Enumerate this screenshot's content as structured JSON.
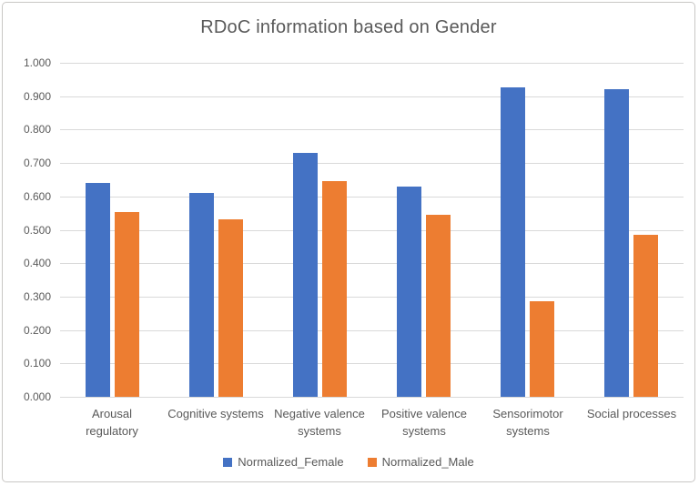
{
  "chart_data": {
    "type": "bar",
    "title": "RDoC information based on Gender",
    "categories": [
      "Arousal regulatory",
      "Cognitive systems",
      "Negative valence systems",
      "Positive valence systems",
      "Sensorimotor systems",
      "Social processes"
    ],
    "category_label_lines": [
      [
        "Arousal",
        "regulatory"
      ],
      [
        "Cognitive systems"
      ],
      [
        "Negative valence",
        "systems"
      ],
      [
        "Positive valence",
        "systems"
      ],
      [
        "Sensorimotor",
        "systems"
      ],
      [
        "Social processes"
      ]
    ],
    "series": [
      {
        "name": "Normalized_Female",
        "color": "#4472C4",
        "values": [
          0.641,
          0.61,
          0.73,
          0.629,
          0.927,
          0.922
        ]
      },
      {
        "name": "Normalized_Male",
        "color": "#ED7D31",
        "values": [
          0.552,
          0.53,
          0.646,
          0.545,
          0.285,
          0.484
        ]
      }
    ],
    "xlabel": "",
    "ylabel": "",
    "ylim": [
      0,
      1
    ],
    "ytick_step": 0.1,
    "ytick_labels": [
      "0.000",
      "0.100",
      "0.200",
      "0.300",
      "0.400",
      "0.500",
      "0.600",
      "0.700",
      "0.800",
      "0.900",
      "1.000"
    ],
    "grid": true,
    "legend_position": "bottom",
    "colors": {
      "text": "#595959",
      "gridline": "#d9d9d9",
      "axis_line": "#d9d9d9",
      "frame_border": "#c9c7c5",
      "background": "#ffffff"
    }
  }
}
